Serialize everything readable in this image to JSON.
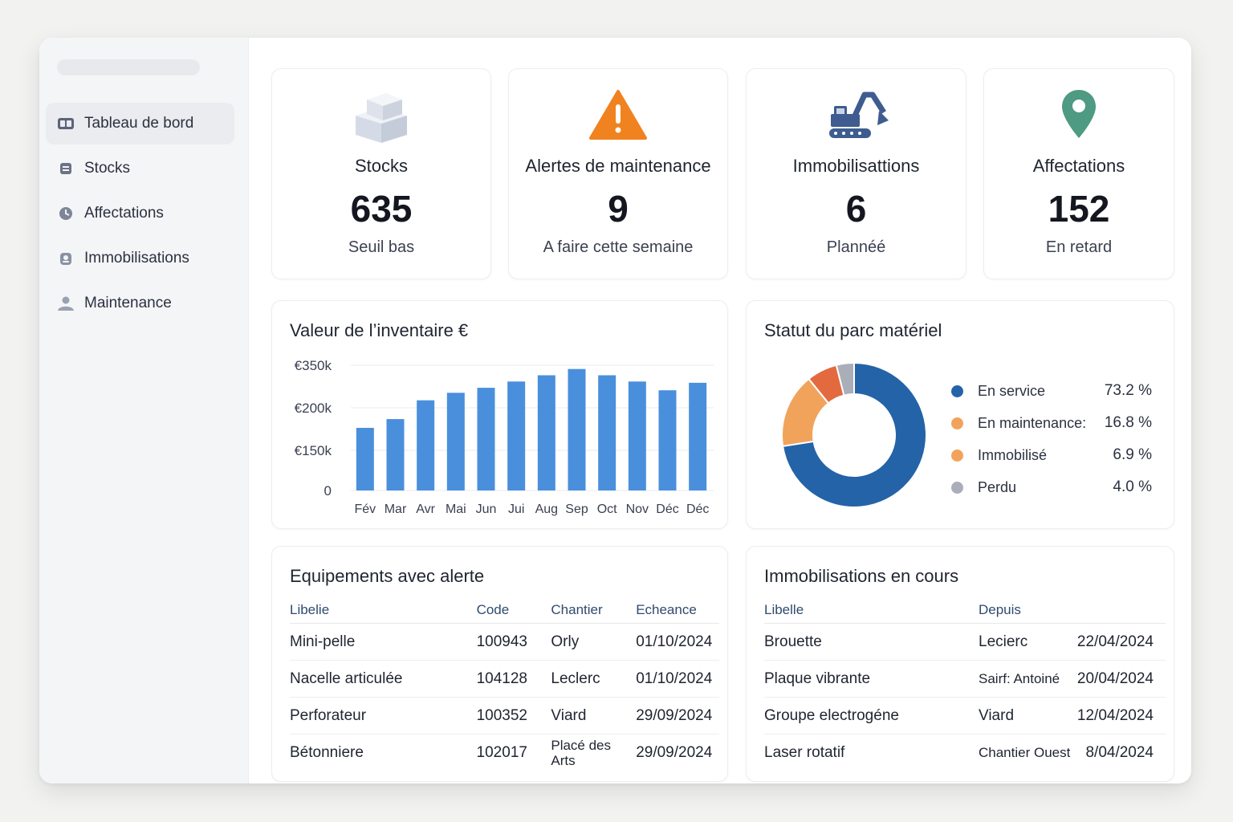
{
  "sidebar": {
    "items": [
      {
        "label": "Tableau de bord",
        "icon": "dashboard-icon",
        "active": true
      },
      {
        "label": "Stocks",
        "icon": "inbox-icon"
      },
      {
        "label": "Affectations",
        "icon": "clock-icon"
      },
      {
        "label": "Immobilisations",
        "icon": "lock-icon"
      },
      {
        "label": "Maintenance",
        "icon": "user-icon"
      }
    ]
  },
  "kpis": [
    {
      "title": "Stocks",
      "value": "635",
      "sub": "Seuil bas",
      "icon": "boxes-icon"
    },
    {
      "title": "Alertes de maintenance",
      "value": "9",
      "sub": "A faire cette semaine",
      "icon": "warning-icon",
      "color": "#f0821f"
    },
    {
      "title": "Immobilisattions",
      "value": "6",
      "sub": "Plannéé",
      "icon": "excavator-icon",
      "color": "#3e5c8f"
    },
    {
      "title": "Affectations",
      "value": "152",
      "sub": "En retard",
      "icon": "map-pin-icon",
      "color": "#4e9a82"
    }
  ],
  "inventory": {
    "title": "Valeur de l’inventaire €",
    "chart_data": {
      "type": "bar",
      "title": "Valeur de l’inventaire €",
      "categories": [
        "Fév",
        "Mar",
        "Avr",
        "Mai",
        "Jun",
        "Jui",
        "Aug",
        "Sep",
        "Oct",
        "Nov",
        "Déc",
        "Déc"
      ],
      "ytick_labels": [
        "€350k",
        "€200k",
        "€150k",
        "0"
      ],
      "values": [
        0.5,
        0.57,
        0.72,
        0.78,
        0.82,
        0.87,
        0.92,
        0.97,
        0.92,
        0.87,
        0.8,
        0.86
      ],
      "value_note": "bar heights as fraction of top gridline (€350k); axis ticks are non-linear",
      "color": "#4a8fdc",
      "grid": true
    }
  },
  "fleet": {
    "title": "Statut du parc matériel",
    "chart_data": {
      "type": "pie",
      "title": "Statut du parc matériel",
      "series": [
        {
          "name": "En service",
          "value": 73.2,
          "display": "73.2 %",
          "color": "#2463a8"
        },
        {
          "name": "En maintenance:",
          "value": 16.8,
          "display": "16.8 %",
          "color": "#f1a35c"
        },
        {
          "name": "Immobilisé",
          "value": 6.9,
          "display": "6.9 %",
          "color": "#e36a3f"
        },
        {
          "name": "Perdu",
          "value": 4.0,
          "display": "4.0 %",
          "color": "#a9aeb8"
        }
      ],
      "legend": "right"
    }
  },
  "alerts": {
    "title": "Equipements avec alerte",
    "columns": [
      "Libelie",
      "Code",
      "Chantier",
      "Echeance"
    ],
    "rows": [
      [
        "Mini-pelle",
        "100943",
        "Orly",
        "01/10/2024"
      ],
      [
        "Nacelle articulée",
        "104128",
        "Leclerc",
        "01/10/2024"
      ],
      [
        "Perforateur",
        "100352",
        "Viard",
        "29/09/2024"
      ],
      [
        "Bétonniere",
        "102017",
        "Placé des Arts",
        "29/09/2024"
      ]
    ]
  },
  "immob": {
    "title": "Immobilisations en cours",
    "columns": [
      "Libelle",
      "Depuis",
      ""
    ],
    "rows": [
      [
        "Brouette",
        "Lecierc",
        "22/04/2024"
      ],
      [
        "Plaque vibrante",
        "Sairf: Antoiné",
        "20/04/2024"
      ],
      [
        "Groupe electrogéne",
        "Viard",
        "12/04/2024"
      ],
      [
        "Laser rotatif",
        "Chantier Ouest",
        "8/04/2024"
      ]
    ]
  }
}
